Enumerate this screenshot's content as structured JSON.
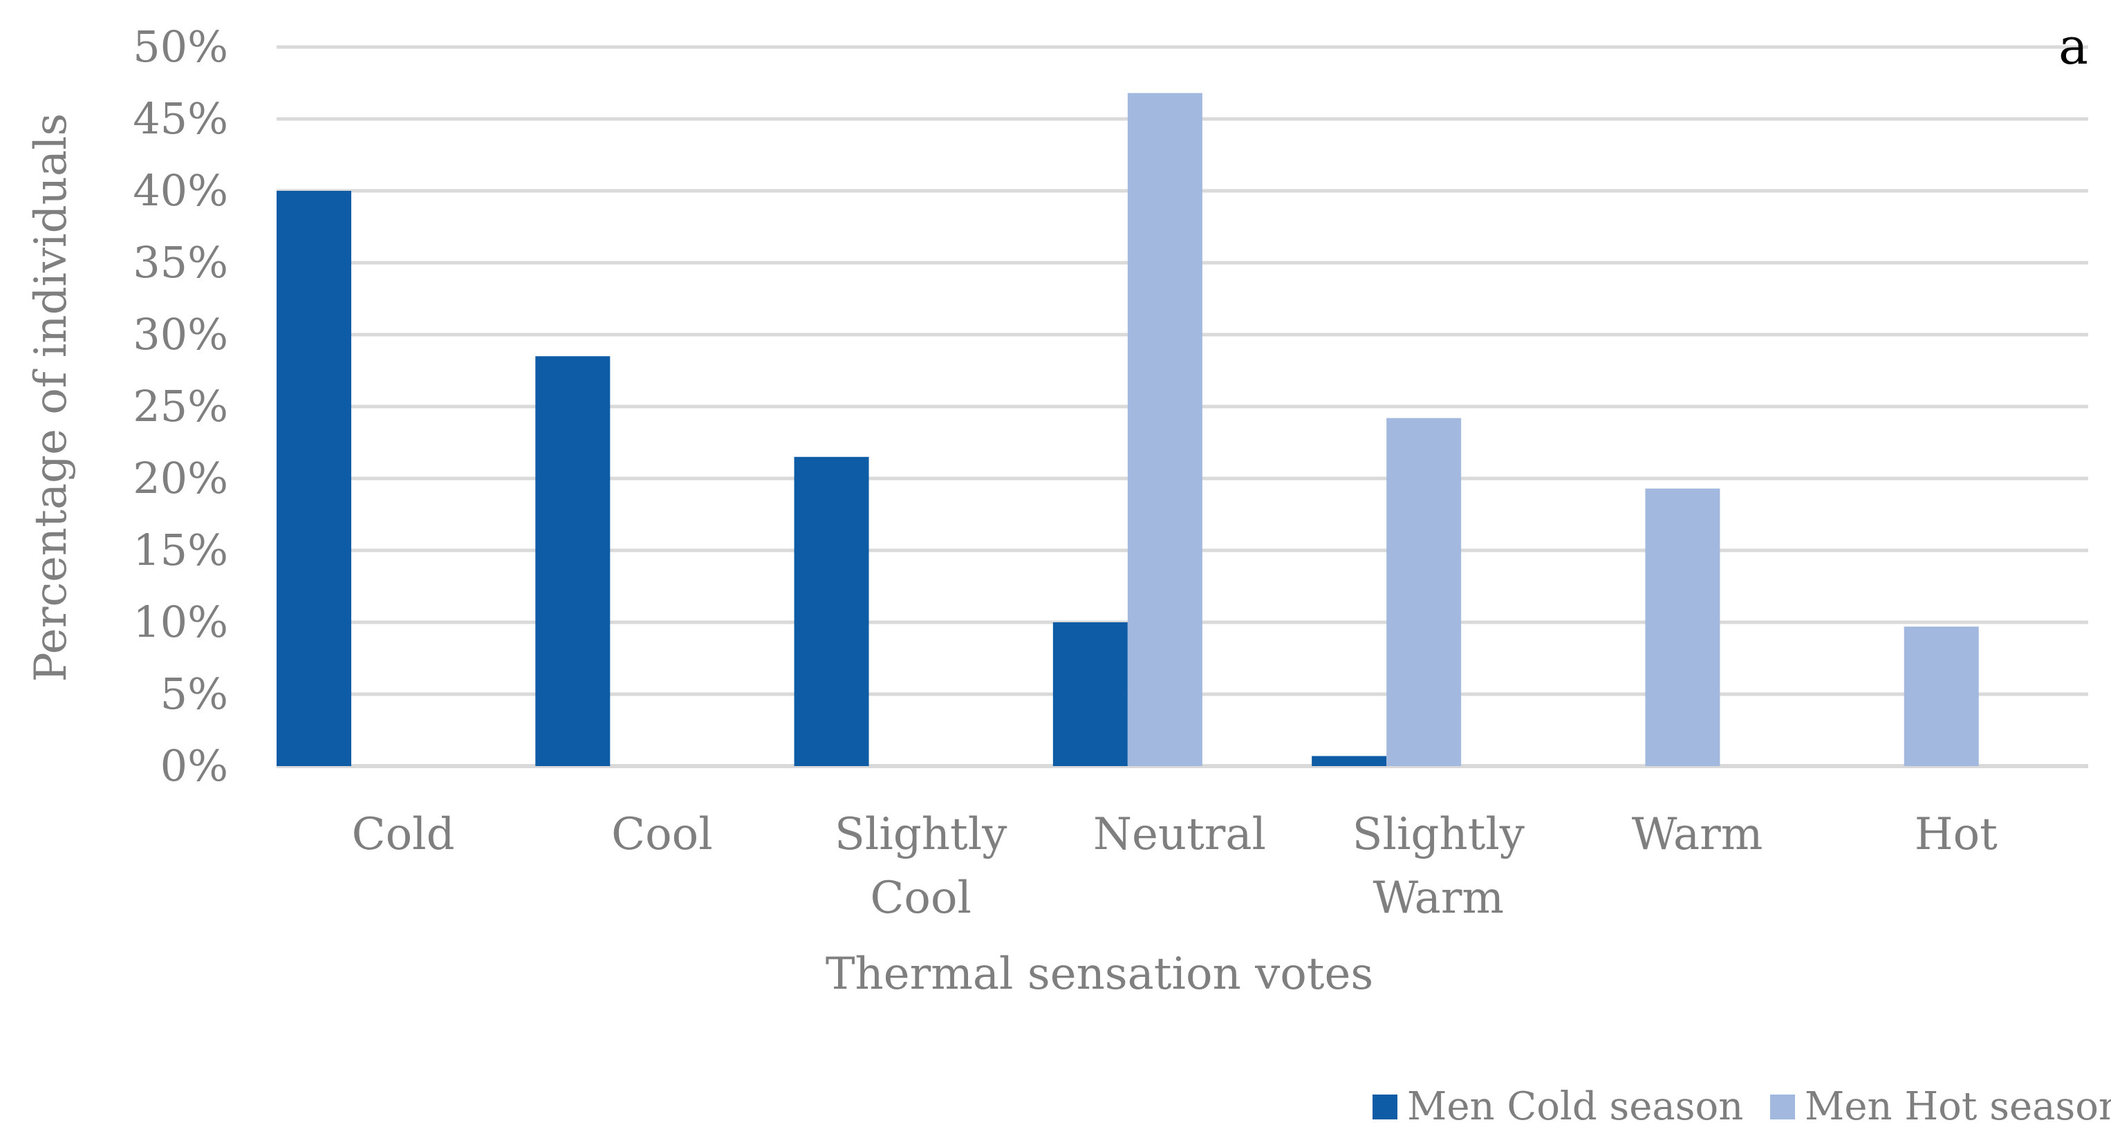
{
  "chart_data": {
    "type": "bar",
    "panel_label": "a",
    "title": "",
    "xlabel": "Thermal sensation votes",
    "ylabel": "Percentage of individuals",
    "ylim": [
      0,
      50
    ],
    "y_ticks": [
      "0%",
      "5%",
      "10%",
      "15%",
      "20%",
      "25%",
      "30%",
      "35%",
      "40%",
      "45%",
      "50%"
    ],
    "grid": true,
    "legend_position": "bottom-right",
    "categories": [
      [
        "Cold"
      ],
      [
        "Cool"
      ],
      [
        "Slightly",
        "Cool"
      ],
      [
        "Neutral"
      ],
      [
        "Slightly",
        "Warm"
      ],
      [
        "Warm"
      ],
      [
        "Hot"
      ]
    ],
    "series": [
      {
        "name": "Men Cold season",
        "color": "#0f5ca6",
        "values": [
          40,
          28.5,
          21.5,
          10,
          0.7,
          0,
          0
        ]
      },
      {
        "name": "Men Hot season",
        "color": "#a3b8de",
        "values": [
          0,
          0,
          0,
          46.8,
          24.2,
          19.3,
          9.7
        ]
      }
    ],
    "colors": {
      "grid": "#d9d9d9",
      "text": "#7f7f7f"
    }
  }
}
